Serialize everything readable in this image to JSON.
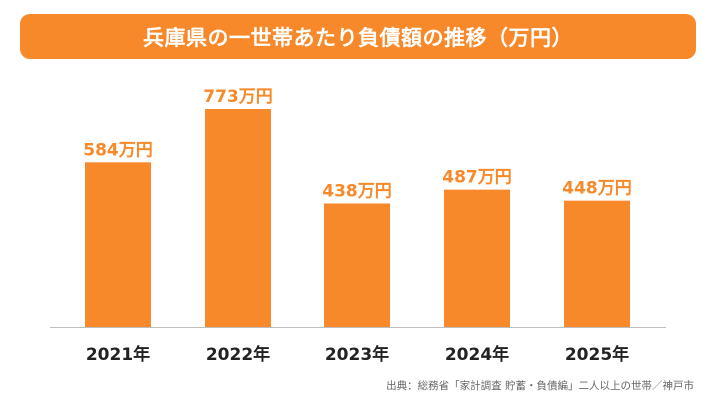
{
  "colors": {
    "accent": "#f7892a",
    "title_text": "#ffffff",
    "axis_label": "#222222",
    "source_text": "#666666",
    "baseline": "#bdbdbd"
  },
  "chart_data": {
    "type": "bar",
    "title": "兵庫県の一世帯あたり負債額の推移（万円）",
    "categories": [
      "2021年",
      "2022年",
      "2023年",
      "2024年",
      "2025年"
    ],
    "values": [
      584,
      773,
      438,
      487,
      448
    ],
    "data_labels": [
      "584万円",
      "773万円",
      "438万円",
      "487万円",
      "448万円"
    ],
    "ylim": [
      0,
      773
    ],
    "grid": false,
    "legend": "none"
  },
  "source": "出典：総務省「家計調査 貯蓄・負債編」二人以上の世帯／神戸市"
}
